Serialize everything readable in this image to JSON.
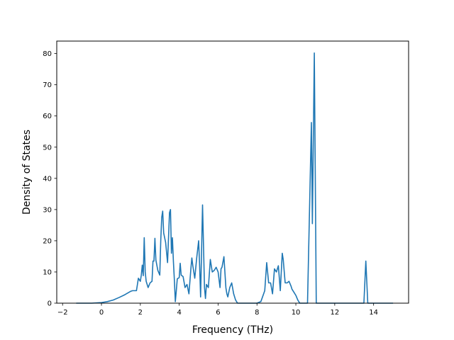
{
  "chart_data": {
    "type": "line",
    "xlabel": "Frequency (THz)",
    "ylabel": "Density of States",
    "xlim": [
      -2.3,
      15.8
    ],
    "ylim": [
      0,
      84
    ],
    "x_ticks": [
      -2,
      0,
      2,
      4,
      6,
      8,
      10,
      12,
      14
    ],
    "y_ticks": [
      0,
      10,
      20,
      30,
      40,
      50,
      60,
      70,
      80
    ],
    "grid": false,
    "series_color": "#1f77b4",
    "series": [
      {
        "x": [
          -1.3,
          -0.5,
          0,
          0.3,
          0.6,
          0.9,
          1.2,
          1.5,
          1.6,
          1.7,
          1.8,
          1.85,
          1.9,
          2.0,
          2.05,
          2.1,
          2.15,
          2.2,
          2.25,
          2.3,
          2.4,
          2.5,
          2.6,
          2.65,
          2.7,
          2.75,
          2.8,
          2.9,
          3.0,
          3.05,
          3.1,
          3.15,
          3.2,
          3.3,
          3.4,
          3.5,
          3.55,
          3.6,
          3.65,
          3.7,
          3.75,
          3.8,
          3.85,
          3.9,
          4.0,
          4.05,
          4.1,
          4.2,
          4.3,
          4.4,
          4.5,
          4.6,
          4.65,
          4.7,
          4.8,
          4.9,
          5.0,
          5.05,
          5.1,
          5.2,
          5.3,
          5.35,
          5.4,
          5.5,
          5.6,
          5.7,
          5.8,
          5.9,
          6.0,
          6.1,
          6.15,
          6.2,
          6.3,
          6.4,
          6.45,
          6.5,
          6.6,
          6.7,
          6.8,
          6.9,
          7.0,
          7.5,
          8.0,
          8.2,
          8.4,
          8.5,
          8.6,
          8.7,
          8.8,
          8.9,
          9.0,
          9.1,
          9.2,
          9.3,
          9.35,
          9.45,
          9.55,
          9.65,
          9.75,
          9.8,
          9.9,
          10.0,
          10.1,
          10.2,
          10.3,
          10.6,
          10.8,
          10.85,
          10.95,
          11.05,
          11.15,
          11.5,
          12.5,
          13.0,
          13.5,
          13.6,
          13.7,
          14.0,
          14.5,
          15.0
        ],
        "y": [
          0,
          0,
          0.2,
          0.5,
          1.0,
          1.8,
          2.7,
          3.8,
          4.0,
          4.0,
          4.0,
          6.0,
          8.0,
          7.0,
          9.0,
          12.2,
          8.8,
          21.0,
          10.0,
          7.0,
          5.0,
          6.5,
          7.0,
          13.5,
          13.5,
          20.8,
          13.8,
          10.5,
          9.0,
          20.0,
          27.5,
          29.5,
          22.5,
          19.5,
          13.0,
          29.0,
          30.0,
          16.0,
          21.0,
          13.5,
          7.5,
          0.5,
          4.0,
          7.8,
          8.2,
          12.8,
          9.0,
          8.5,
          5.0,
          6.0,
          3.0,
          11.0,
          14.5,
          12.0,
          8.0,
          14.5,
          20.0,
          12.0,
          2.0,
          31.5,
          5.0,
          1.5,
          6.0,
          5.0,
          14.0,
          10.0,
          10.5,
          11.5,
          10.0,
          5.0,
          11.0,
          11.5,
          14.9,
          5.0,
          3.0,
          2.0,
          5.0,
          6.5,
          3.0,
          1.0,
          0,
          0,
          0,
          0.5,
          4.0,
          13.0,
          6.5,
          6.5,
          3.0,
          11.0,
          10.0,
          12.0,
          4.0,
          16.0,
          14.0,
          6.5,
          6.5,
          7.0,
          5.5,
          4.5,
          3.5,
          2.5,
          1.0,
          0,
          0,
          0,
          57.9,
          25.5,
          80.2,
          0,
          0,
          0,
          0,
          0,
          0,
          13.5,
          0,
          0,
          0,
          0
        ]
      }
    ]
  }
}
